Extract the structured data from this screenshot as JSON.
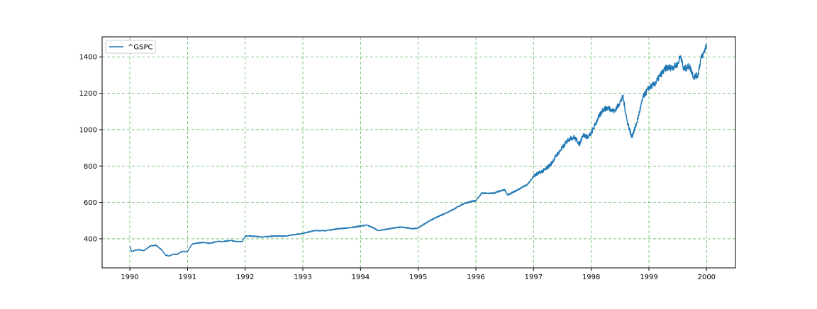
{
  "chart_data": {
    "type": "line",
    "title": "",
    "xlabel": "",
    "ylabel": "",
    "xlim": [
      1989.52,
      2000.5
    ],
    "ylim": [
      240,
      1510
    ],
    "x_ticks": [
      1990,
      1991,
      1992,
      1993,
      1994,
      1995,
      1996,
      1997,
      1998,
      1999,
      2000
    ],
    "x_tick_labels": [
      "1990",
      "1991",
      "1992",
      "1993",
      "1994",
      "1995",
      "1996",
      "1997",
      "1998",
      "1999",
      "2000"
    ],
    "y_ticks": [
      400,
      600,
      800,
      1000,
      1200,
      1400
    ],
    "y_tick_labels": [
      "400",
      "600",
      "800",
      "1000",
      "1200",
      "1400"
    ],
    "grid": true,
    "grid_color": "#2ca02c",
    "legend_position": "top-left",
    "series": [
      {
        "name": "^GSPC",
        "color": "#1f77b4",
        "x": [
          1990.0,
          1990.03,
          1990.08,
          1990.15,
          1990.25,
          1990.35,
          1990.45,
          1990.55,
          1990.62,
          1990.68,
          1990.75,
          1990.82,
          1990.9,
          1991.0,
          1991.08,
          1991.15,
          1991.25,
          1991.4,
          1991.5,
          1991.6,
          1991.75,
          1991.85,
          1991.95,
          1992.0,
          1992.1,
          1992.3,
          1992.5,
          1992.7,
          1992.9,
          1993.0,
          1993.2,
          1993.4,
          1993.6,
          1993.8,
          1994.0,
          1994.1,
          1994.2,
          1994.3,
          1994.5,
          1994.7,
          1994.9,
          1995.0,
          1995.2,
          1995.4,
          1995.6,
          1995.8,
          1996.0,
          1996.1,
          1996.3,
          1996.5,
          1996.55,
          1996.7,
          1996.9,
          1997.0,
          1997.2,
          1997.3,
          1997.4,
          1997.5,
          1997.6,
          1997.7,
          1997.8,
          1997.85,
          1997.95,
          1998.0,
          1998.1,
          1998.2,
          1998.3,
          1998.4,
          1998.5,
          1998.55,
          1998.62,
          1998.7,
          1998.75,
          1998.8,
          1998.9,
          1999.0,
          1999.1,
          1999.2,
          1999.3,
          1999.4,
          1999.5,
          1999.55,
          1999.6,
          1999.7,
          1999.78,
          1999.85,
          1999.9,
          1999.95,
          2000.0
        ],
        "values": [
          360,
          330,
          335,
          340,
          335,
          360,
          365,
          340,
          310,
          305,
          315,
          315,
          330,
          330,
          370,
          375,
          380,
          375,
          385,
          385,
          390,
          385,
          385,
          415,
          415,
          410,
          415,
          415,
          425,
          430,
          445,
          445,
          455,
          460,
          470,
          475,
          465,
          445,
          455,
          465,
          455,
          460,
          500,
          530,
          560,
          595,
          610,
          650,
          650,
          670,
          640,
          665,
          700,
          745,
          780,
          810,
          860,
          900,
          945,
          960,
          920,
          970,
          960,
          980,
          1050,
          1110,
          1120,
          1100,
          1150,
          1180,
          1050,
          960,
          1000,
          1050,
          1180,
          1230,
          1250,
          1300,
          1340,
          1340,
          1360,
          1410,
          1330,
          1350,
          1290,
          1300,
          1390,
          1420,
          1470
        ]
      }
    ]
  }
}
